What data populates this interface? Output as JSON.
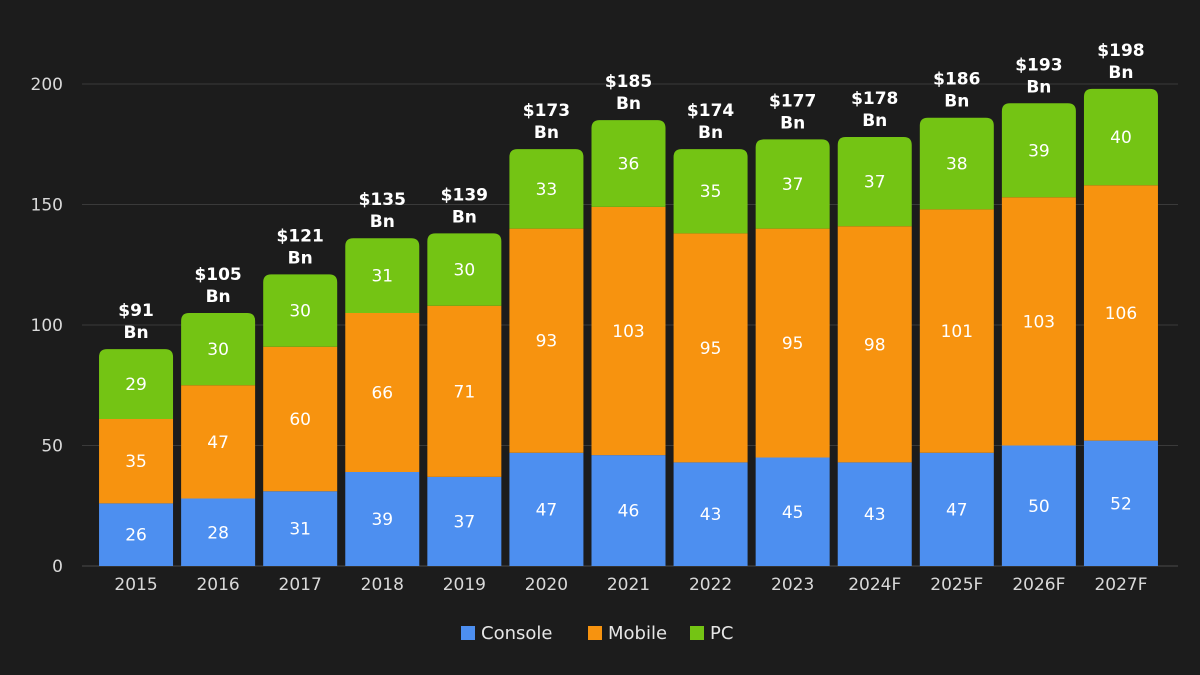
{
  "chart_data": {
    "type": "bar",
    "stacked": true,
    "categories": [
      "2015",
      "2016",
      "2017",
      "2018",
      "2019",
      "2020",
      "2021",
      "2022",
      "2023",
      "2024F",
      "2025F",
      "2026F",
      "2027F"
    ],
    "series": [
      {
        "name": "Console",
        "color": "#4d8ff0",
        "values": [
          26,
          28,
          31,
          39,
          37,
          47,
          46,
          43,
          45,
          43,
          47,
          50,
          52
        ]
      },
      {
        "name": "Mobile",
        "color": "#f7930f",
        "values": [
          35,
          47,
          60,
          66,
          71,
          93,
          103,
          95,
          95,
          98,
          101,
          103,
          106
        ]
      },
      {
        "name": "PC",
        "color": "#74c414",
        "values": [
          29,
          30,
          30,
          31,
          30,
          33,
          36,
          35,
          37,
          37,
          38,
          39,
          40
        ]
      }
    ],
    "totals": [
      [
        "$91",
        "Bn"
      ],
      [
        "$105",
        "Bn"
      ],
      [
        "$121",
        "Bn"
      ],
      [
        "$135",
        "Bn"
      ],
      [
        "$139",
        "Bn"
      ],
      [
        "$173",
        "Bn"
      ],
      [
        "$185",
        "Bn"
      ],
      [
        "$174",
        "Bn"
      ],
      [
        "$177",
        "Bn"
      ],
      [
        "$178",
        "Bn"
      ],
      [
        "$186",
        "Bn"
      ],
      [
        "$193",
        "Bn"
      ],
      [
        "$198",
        "Bn"
      ]
    ],
    "ylim": [
      0,
      200
    ],
    "yticks": [
      0,
      50,
      100,
      150,
      200
    ],
    "grid": true,
    "legend_position": "bottom-center"
  },
  "colors": {
    "background": "#1c1c1c",
    "grid": "#3a3a3a",
    "text": "#ffffff"
  }
}
